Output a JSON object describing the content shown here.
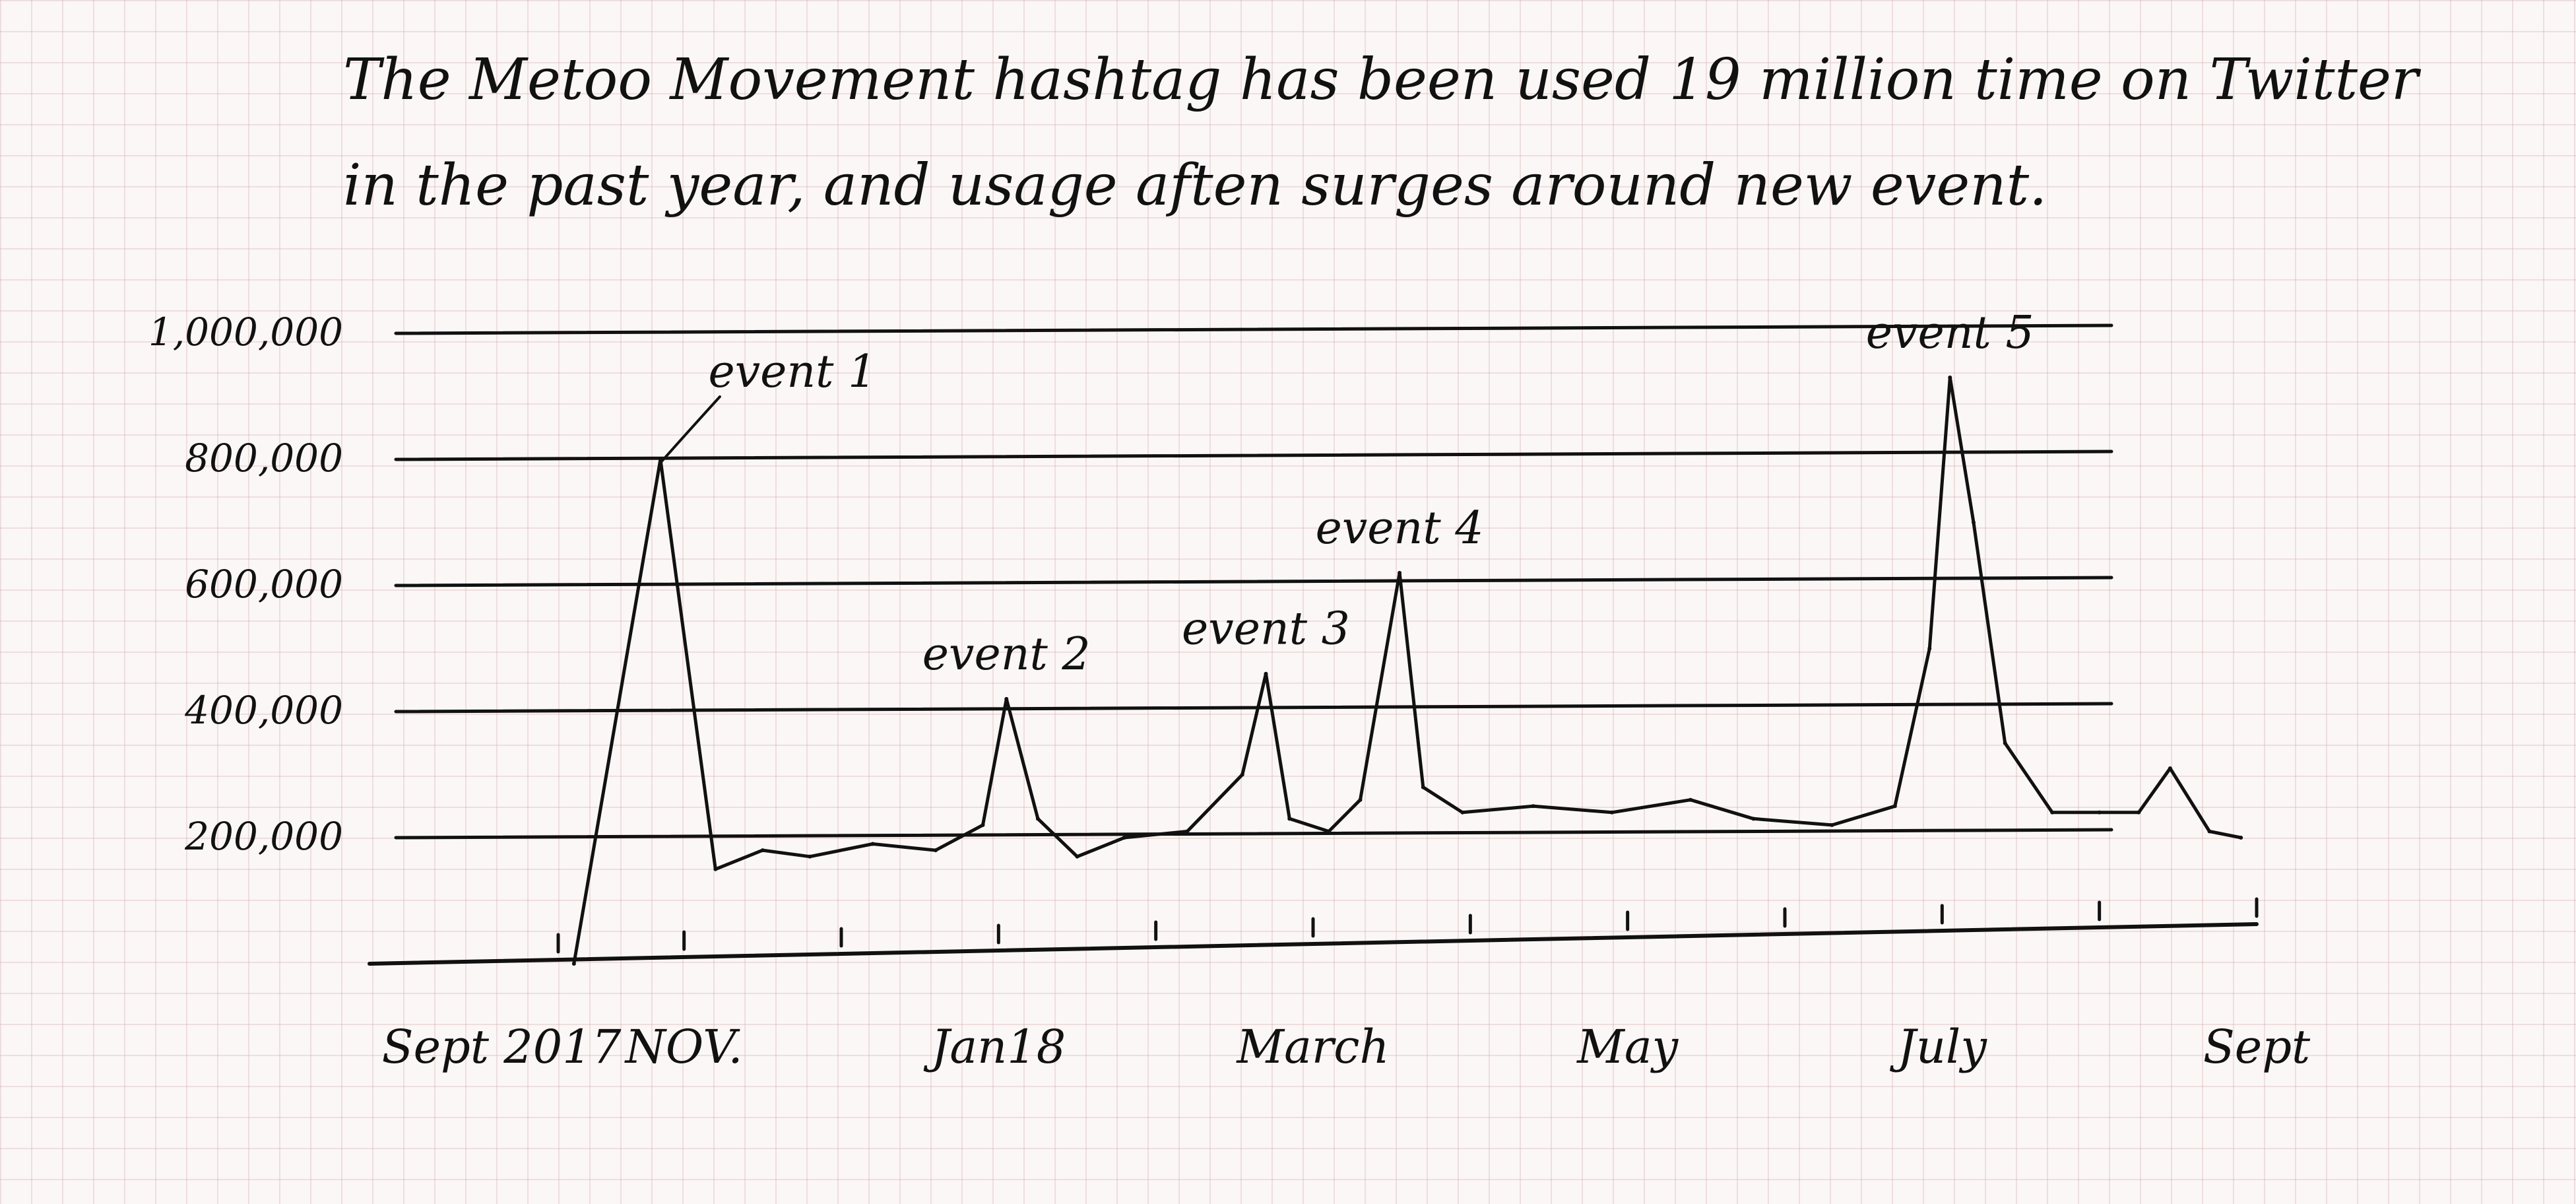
{
  "chart_data": {
    "type": "line",
    "title_lines": [
      "The Metoo Movement hashtag has been used 19 million time on Twitter",
      "in the past year, and usage aften surges around new event."
    ],
    "xlabel": "",
    "ylabel": "",
    "ylim": [
      0,
      1000000
    ],
    "y_ticks": [
      {
        "value": 200000,
        "label": "200,000"
      },
      {
        "value": 400000,
        "label": "400,000"
      },
      {
        "value": 600000,
        "label": "600,000"
      },
      {
        "value": 800000,
        "label": "800,000"
      },
      {
        "value": 1000000,
        "label": "1,000,000"
      }
    ],
    "x_labels": [
      {
        "value": 0,
        "label": "Sept 2017"
      },
      {
        "value": 2,
        "label": "NOV."
      },
      {
        "value": 4,
        "label": "Jan18"
      },
      {
        "value": 6,
        "label": "March"
      },
      {
        "value": 8,
        "label": "May"
      },
      {
        "value": 10,
        "label": "July"
      },
      {
        "value": 12,
        "label": "Sept"
      }
    ],
    "x_minor_ticks": [
      1.2,
      2.0,
      3.0,
      4.0,
      5.0,
      6.0,
      7.0,
      8.0,
      9.0,
      10.0,
      11.0,
      12.0
    ],
    "grid": true,
    "series": [
      {
        "x": [
          1.3,
          1.85,
          2.2,
          2.5,
          2.8,
          3.2,
          3.6,
          3.9,
          4.05,
          4.25,
          4.5,
          4.8,
          5.2,
          5.55,
          5.7,
          5.85,
          6.1,
          6.3,
          6.55,
          6.7,
          6.95,
          7.4,
          7.9,
          8.4,
          8.8,
          9.3,
          9.7,
          9.92,
          10.05,
          10.2,
          10.4,
          10.7,
          11.0,
          11.25,
          11.45,
          11.7,
          11.9
        ],
        "y": [
          0,
          800000,
          150000,
          180000,
          170000,
          190000,
          180000,
          220000,
          420000,
          230000,
          170000,
          200000,
          210000,
          300000,
          460000,
          230000,
          210000,
          260000,
          620000,
          280000,
          240000,
          250000,
          240000,
          260000,
          230000,
          220000,
          250000,
          500000,
          930000,
          700000,
          350000,
          240000,
          240000,
          240000,
          310000,
          210000,
          200000
        ]
      }
    ],
    "annotations": [
      {
        "text": "event 1",
        "x": 1.85,
        "y": 800000
      },
      {
        "text": "event 2",
        "x": 4.05,
        "y": 420000
      },
      {
        "text": "event 3",
        "x": 5.7,
        "y": 460000
      },
      {
        "text": "event 4",
        "x": 6.55,
        "y": 620000
      },
      {
        "text": "event 5",
        "x": 10.05,
        "y": 930000
      }
    ]
  }
}
